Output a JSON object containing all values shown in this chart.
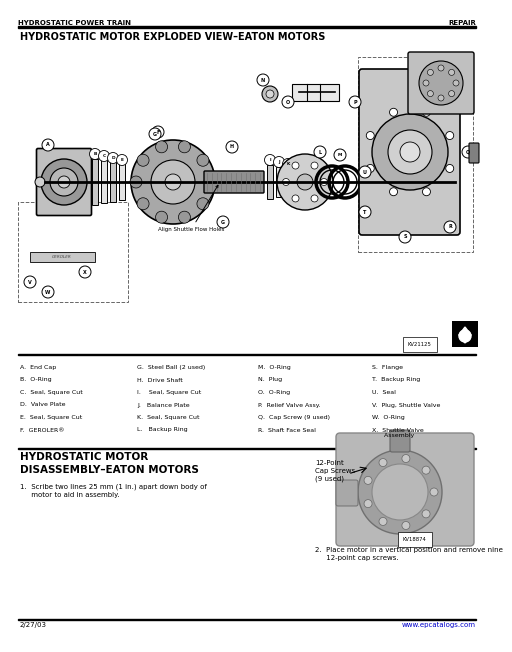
{
  "header_left": "HYDROSTATIC POWER TRAIN",
  "header_right": "REPAIR",
  "title1": "HYDROSTATIC MOTOR EXPLODED VIEW–EATON MOTORS",
  "title2_line1": "HYDROSTATIC MOTOR",
  "title2_line2": "DISASSEMBLY–EATON MOTORS",
  "footer_left": "2/27/03",
  "footer_right": "www.epcatalogs.com",
  "parts_col1": [
    "A.  End Cap",
    "B.  O-Ring",
    "C.  Seal, Square Cut",
    "D.  Valve Plate",
    "E.  Seal, Square Cut",
    "F.  GEROLER®"
  ],
  "parts_col2": [
    "G.  Steel Ball (2 used)",
    "H.  Drive Shaft",
    "I.    Seal, Square Cut",
    "J.   Balance Plate",
    "K.  Seal, Square Cut",
    "L.   Backup Ring"
  ],
  "parts_col3": [
    "M.  O-Ring",
    "N.  Plug",
    "O.  O-Ring",
    "P.  Relief Valve Assy.",
    "Q.  Cap Screw (9 used)",
    "R.  Shaft Face Seal"
  ],
  "parts_col4": [
    "S.  Flange",
    "T.  Backup Ring",
    "U.  Seal",
    "V.  Plug, Shuttle Valve",
    "W.  O-Ring",
    "X.  Shuttle Valve\n      Assembly"
  ],
  "step1": "1.  Scribe two lines 25 mm (1 in.) apart down body of\n     motor to aid in assembly.",
  "step2": "2.  Place motor in a vertical position and remove nine\n     12-point cap screws.",
  "cap_label": "12-Point\nCap Screws\n(9 used)",
  "align_label": "Align Shuttle Flow Holes",
  "kv1": "KV21125",
  "kv2": "KV18874",
  "bg": "#ffffff",
  "fg": "#000000",
  "gray1": "#b0b0b0",
  "gray2": "#cccccc",
  "gray3": "#e0e0e0",
  "gray4": "#909090",
  "gray5": "#d8d8d8"
}
